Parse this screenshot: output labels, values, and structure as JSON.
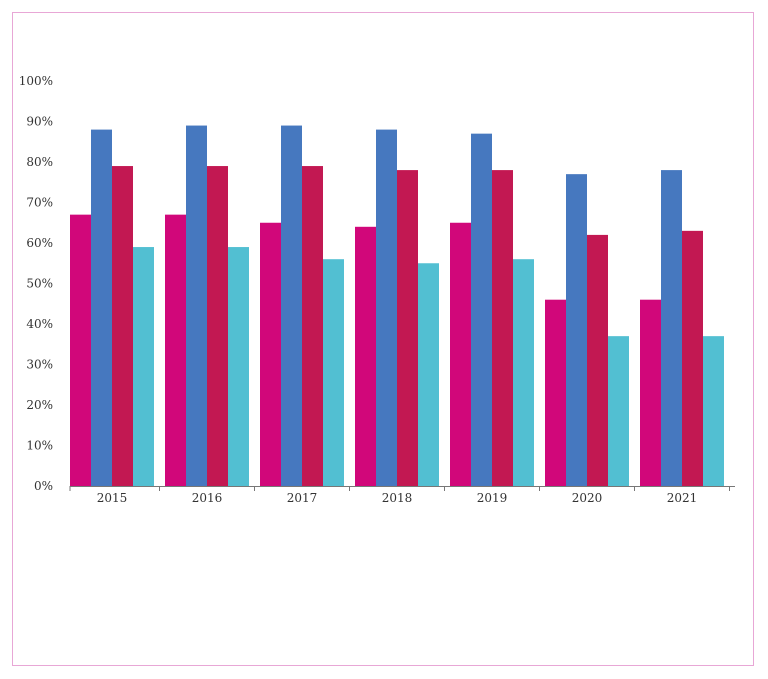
{
  "chart_data": {
    "type": "bar",
    "title": "",
    "xlabel": "",
    "ylabel": "",
    "categories": [
      "2015",
      "2016",
      "2017",
      "2018",
      "2019",
      "2020",
      "2021"
    ],
    "ylim": [
      0,
      100
    ],
    "y_ticks": [
      "0%",
      "10%",
      "20%",
      "30%",
      "40%",
      "50%",
      "60%",
      "70%",
      "80%",
      "90%",
      "100%"
    ],
    "grid": false,
    "legend": "none",
    "series": [
      {
        "values": [
          67,
          67,
          65,
          64,
          65,
          46,
          46
        ],
        "color": "#d1077a"
      },
      {
        "values": [
          88,
          89,
          89,
          88,
          87,
          77,
          78
        ],
        "color": "#4678bf"
      },
      {
        "values": [
          79,
          79,
          79,
          78,
          78,
          62,
          63
        ],
        "color": "#c21852"
      },
      {
        "values": [
          59,
          59,
          56,
          55,
          56,
          37,
          37
        ],
        "color": "#52bfd2"
      }
    ]
  },
  "colors": {
    "frame_border": "#e8a7d6",
    "axis": "#777777",
    "text": "#333333"
  }
}
